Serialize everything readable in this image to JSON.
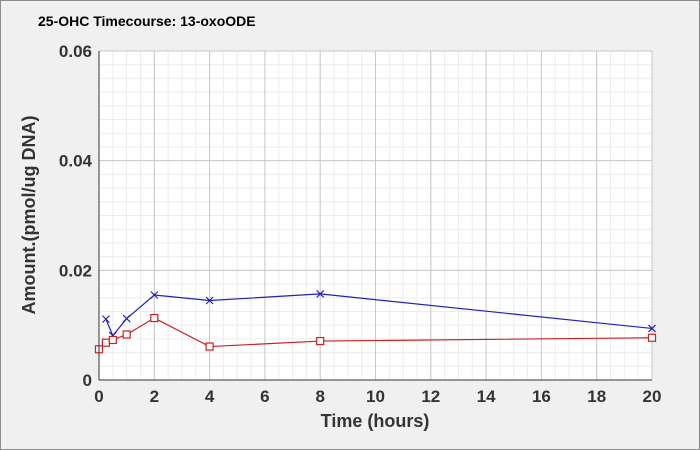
{
  "chart_data": {
    "type": "line",
    "title": "25-OHC Timecourse: 13-oxoODE",
    "xlabel": "Time (hours)",
    "ylabel": "Amount.(pmol/ug DNA)",
    "xlim": [
      0,
      20
    ],
    "ylim": [
      0,
      0.06
    ],
    "x_ticks": [
      0,
      2,
      4,
      6,
      8,
      10,
      12,
      14,
      16,
      18,
      20
    ],
    "y_ticks": [
      0,
      0.02,
      0.04,
      0.06
    ],
    "y_tick_labels": [
      "0",
      "0.02",
      "0.04",
      "0.06"
    ],
    "grid": true,
    "series": [
      {
        "color": "#2020c0",
        "marker": "x",
        "x": [
          0.25,
          0.5,
          1,
          2,
          4,
          8,
          20
        ],
        "y": [
          0.0111,
          0.0081,
          0.0112,
          0.0155,
          0.0145,
          0.0157,
          0.0094
        ]
      },
      {
        "color": "#cc2020",
        "marker": "square",
        "x": [
          0,
          0.25,
          0.5,
          1,
          2,
          4,
          8,
          20
        ],
        "y": [
          0.0056,
          0.0068,
          0.0073,
          0.0083,
          0.0113,
          0.0061,
          0.0071,
          0.0077
        ]
      }
    ]
  }
}
